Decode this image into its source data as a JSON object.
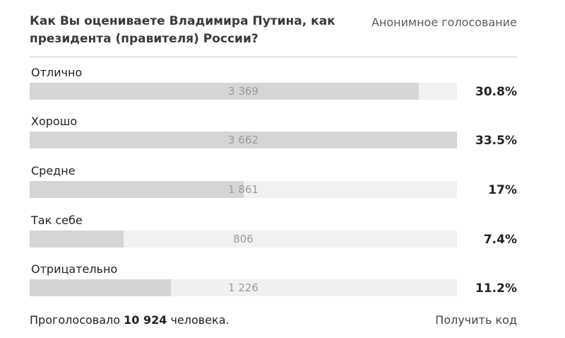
{
  "poll": {
    "question": "Как Вы оцениваете Владимира Путина, как президента (правителя) России?",
    "type_label": "Анонимное голосование",
    "options": [
      {
        "label": "Отлично",
        "count": "3 369",
        "percent": "30.8%",
        "fill_fraction": 0.91
      },
      {
        "label": "Хорошо",
        "count": "3 662",
        "percent": "33.5%",
        "fill_fraction": 1.0
      },
      {
        "label": "Средне",
        "count": "1 861",
        "percent": "17%",
        "fill_fraction": 0.5
      },
      {
        "label": "Так себе",
        "count": "806",
        "percent": "7.4%",
        "fill_fraction": 0.22
      },
      {
        "label": "Отрицательно",
        "count": "1 226",
        "percent": "11.2%",
        "fill_fraction": 0.33
      }
    ]
  },
  "footer": {
    "summary_prefix": "Проголосовало",
    "total_votes": "10 924",
    "summary_suffix": "человека.",
    "get_code_label": "Получить код"
  },
  "colors": {
    "bar_fill": "#d5d5d5",
    "bar_track": "#f1f1f1",
    "count_text": "#9a9a9a"
  }
}
